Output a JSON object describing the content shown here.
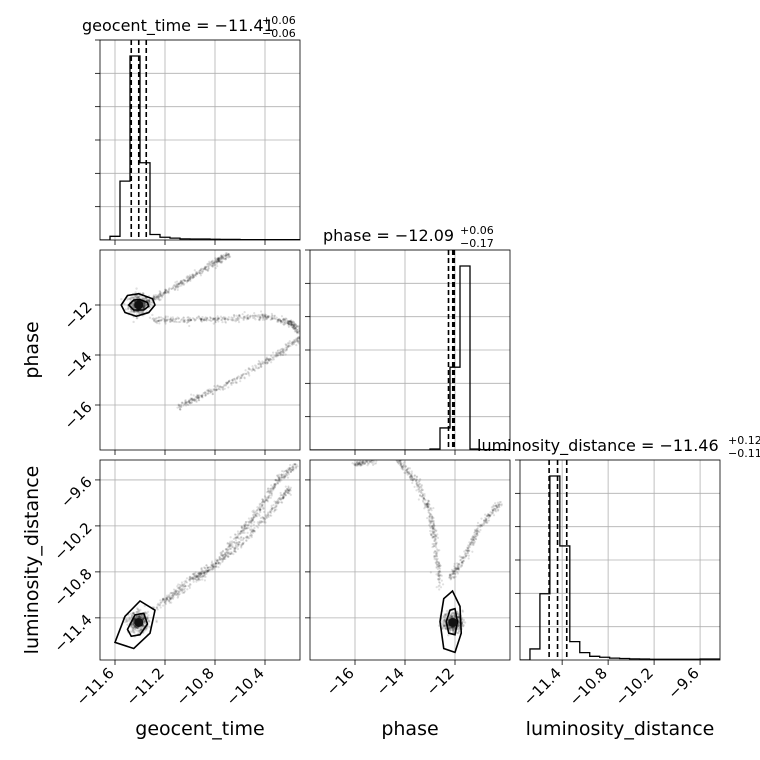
{
  "chart_data": {
    "type": "scatter",
    "parameters": [
      "geocent_time",
      "phase",
      "luminosity_distance"
    ],
    "ranges": {
      "geocent_time": [
        -11.72,
        -10.12
      ],
      "phase": [
        -17.8,
        -9.8
      ],
      "luminosity_distance": [
        -11.95,
        -9.34
      ]
    },
    "ticks": {
      "geocent_time": {
        "values": [
          -11.6,
          -11.2,
          -10.8,
          -10.4
        ],
        "labels": [
          "−11.6",
          "−11.2",
          "−10.8",
          "−10.4"
        ]
      },
      "phase": {
        "values": [
          -16,
          -14,
          -12
        ],
        "labels": [
          "−16",
          "−14",
          "−12"
        ]
      },
      "luminosity_distance": {
        "values": [
          -11.4,
          -10.8,
          -10.2,
          -9.6
        ],
        "labels": [
          "−11.4",
          "−10.8",
          "−10.2",
          "−9.6"
        ]
      }
    },
    "titles": [
      {
        "parameter": "geocent_time",
        "text": "geocent_time = −11.41",
        "upper": "+0.06",
        "lower": "−0.06"
      },
      {
        "parameter": "phase",
        "text": "phase = −12.09",
        "upper": "+0.06",
        "lower": "−0.17"
      },
      {
        "parameter": "luminosity_distance",
        "text": "luminosity_distance = −11.46",
        "upper": "+0.12",
        "lower": "−0.11"
      }
    ],
    "quantiles": {
      "geocent_time": [
        -11.47,
        -11.41,
        -11.35
      ],
      "phase": [
        -12.26,
        -12.09,
        -12.03
      ],
      "luminosity_distance": [
        -11.57,
        -11.46,
        -11.34
      ]
    },
    "histograms": {
      "geocent_time": {
        "edges": [
          -11.72,
          -11.64,
          -11.56,
          -11.48,
          -11.4,
          -11.32,
          -11.24,
          -11.16,
          -11.08,
          -11.0,
          -10.92,
          -10.84,
          -10.76,
          -10.68,
          -10.6,
          -10.52,
          -10.44,
          -10.36,
          -10.28,
          -10.2,
          -10.12
        ],
        "counts": [
          0,
          2,
          32,
          100,
          42,
          3,
          1.5,
          1,
          0.6,
          0.5,
          0.5,
          0.4,
          0.3,
          0.3,
          0.2,
          0.2,
          0.2,
          0.2,
          0.2,
          0.2
        ]
      },
      "phase": {
        "edges": [
          -17.8,
          -17.4,
          -17.0,
          -16.6,
          -16.2,
          -15.8,
          -15.4,
          -15.0,
          -14.6,
          -14.2,
          -13.8,
          -13.4,
          -13.0,
          -12.6,
          -12.2,
          -11.8,
          -11.4,
          -11.0,
          -10.6,
          -10.2,
          -9.8
        ],
        "counts": [
          0,
          0,
          0,
          0,
          0,
          0,
          0,
          0,
          0,
          0,
          0,
          0,
          0.5,
          12,
          45,
          100,
          0.5,
          0.2,
          0.2,
          0.2
        ]
      },
      "luminosity_distance": {
        "edges": [
          -11.95,
          -11.82,
          -11.69,
          -11.56,
          -11.43,
          -11.3,
          -11.17,
          -11.04,
          -10.91,
          -10.78,
          -10.65,
          -10.52,
          -10.39,
          -10.26,
          -10.13,
          -10.0,
          -9.87,
          -9.74,
          -9.6,
          -9.47,
          -9.34
        ],
        "counts": [
          0,
          6,
          36,
          100,
          62,
          10,
          4,
          2,
          1.5,
          1,
          0.8,
          0.6,
          0.5,
          0.4,
          0.4,
          0.4,
          0.4,
          0.4,
          0.5,
          0.5
        ]
      }
    },
    "pairs": [
      {
        "x": "geocent_time",
        "y": "phase",
        "mode": [
          -11.41,
          -12.0
        ],
        "contours": [
          [
            [
              -11.55,
              -12.0
            ],
            [
              -11.5,
              -11.62
            ],
            [
              -11.41,
              -11.55
            ],
            [
              -11.3,
              -11.75
            ],
            [
              -11.28,
              -12.0
            ],
            [
              -11.33,
              -12.3
            ],
            [
              -11.43,
              -12.45
            ],
            [
              -11.52,
              -12.3
            ]
          ],
          [
            [
              -11.49,
              -12.0
            ],
            [
              -11.45,
              -11.8
            ],
            [
              -11.4,
              -11.78
            ],
            [
              -11.34,
              -11.9
            ],
            [
              -11.33,
              -12.05
            ],
            [
              -11.37,
              -12.2
            ],
            [
              -11.45,
              -12.2
            ]
          ]
        ],
        "trails": [
          [
            [
              -11.35,
              -11.95
            ],
            [
              -11.2,
              -11.5
            ],
            [
              -11.0,
              -10.9
            ],
            [
              -10.8,
              -10.3
            ],
            [
              -10.7,
              -10.0
            ]
          ],
          [
            [
              -11.3,
              -12.6
            ],
            [
              -11.0,
              -12.6
            ],
            [
              -10.7,
              -12.55
            ],
            [
              -10.4,
              -12.45
            ],
            [
              -10.2,
              -12.7
            ],
            [
              -10.12,
              -13.1
            ]
          ],
          [
            [
              -10.12,
              -13.3
            ],
            [
              -10.3,
              -14.0
            ],
            [
              -10.6,
              -14.9
            ],
            [
              -10.9,
              -15.6
            ],
            [
              -11.1,
              -16.1
            ]
          ]
        ]
      },
      {
        "x": "geocent_time",
        "y": "luminosity_distance",
        "mode": [
          -11.41,
          -11.46
        ],
        "contours": [
          [
            [
              -11.6,
              -11.72
            ],
            [
              -11.52,
              -11.38
            ],
            [
              -11.4,
              -11.18
            ],
            [
              -11.28,
              -11.3
            ],
            [
              -11.32,
              -11.6
            ],
            [
              -11.45,
              -11.8
            ]
          ],
          [
            [
              -11.5,
              -11.55
            ],
            [
              -11.44,
              -11.36
            ],
            [
              -11.37,
              -11.34
            ],
            [
              -11.34,
              -11.48
            ],
            [
              -11.4,
              -11.62
            ],
            [
              -11.47,
              -11.64
            ]
          ]
        ],
        "trails": [
          [
            [
              -11.3,
              -11.3
            ],
            [
              -11.0,
              -10.9
            ],
            [
              -10.8,
              -10.7
            ],
            [
              -10.6,
              -10.3
            ],
            [
              -10.45,
              -10.0
            ],
            [
              -10.3,
              -9.6
            ],
            [
              -10.15,
              -9.4
            ]
          ],
          [
            [
              -11.2,
              -11.2
            ],
            [
              -10.9,
              -10.85
            ],
            [
              -10.6,
              -10.45
            ],
            [
              -10.35,
              -10.0
            ],
            [
              -10.2,
              -9.7
            ]
          ]
        ]
      },
      {
        "x": "phase",
        "y": "luminosity_distance",
        "mode": [
          -12.09,
          -11.46
        ],
        "contours": [
          [
            [
              -12.6,
              -11.45
            ],
            [
              -12.45,
              -11.15
            ],
            [
              -12.1,
              -11.05
            ],
            [
              -11.8,
              -11.25
            ],
            [
              -11.75,
              -11.6
            ],
            [
              -12.0,
              -11.85
            ],
            [
              -12.45,
              -11.8
            ]
          ],
          [
            [
              -12.35,
              -11.45
            ],
            [
              -12.2,
              -11.3
            ],
            [
              -12.0,
              -11.28
            ],
            [
              -11.9,
              -11.45
            ],
            [
              -12.0,
              -11.62
            ],
            [
              -12.25,
              -11.6
            ]
          ]
        ],
        "trails": [
          [
            [
              -12.6,
              -11.0
            ],
            [
              -12.8,
              -10.4
            ],
            [
              -13.0,
              -10.0
            ],
            [
              -13.6,
              -9.6
            ],
            [
              -14.3,
              -9.34
            ]
          ],
          [
            [
              -12.2,
              -10.9
            ],
            [
              -11.6,
              -10.6
            ],
            [
              -11.0,
              -10.2
            ],
            [
              -10.2,
              -9.9
            ]
          ],
          [
            [
              -16.0,
              -9.4
            ],
            [
              -15.2,
              -9.34
            ]
          ]
        ]
      }
    ]
  }
}
